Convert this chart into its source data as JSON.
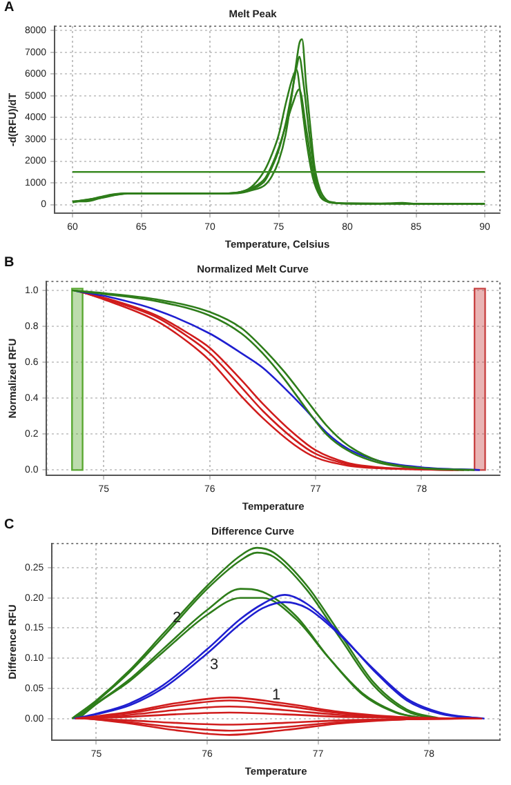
{
  "chart_data": [
    {
      "type": "line",
      "title": "Melt Peak",
      "xlabel": "Temperature, Celsius",
      "ylabel": "-d(RFU)/dT",
      "annotations": [
        "A"
      ],
      "xlim": [
        58.7,
        91.1
      ],
      "ylim": [
        -400,
        8200
      ],
      "xticks": [
        60,
        65,
        70,
        75,
        80,
        85,
        90
      ],
      "yticks": [
        0,
        1000,
        2000,
        3000,
        4000,
        5000,
        6000,
        7000,
        8000
      ],
      "grid": true,
      "legend": false,
      "ref_lines": [
        {
          "axis": "y",
          "value": 1500,
          "color": "#3a8a22"
        }
      ],
      "series": [
        {
          "color": "#2e7d1a",
          "x": [
            60,
            60.5,
            61,
            61.5,
            62,
            63,
            64,
            66,
            68,
            70,
            72,
            73,
            74,
            74.5,
            75,
            75.5,
            76,
            76.3,
            76.6,
            77,
            77.5,
            78,
            78.5,
            79,
            80,
            82,
            83,
            84,
            85,
            88,
            90
          ],
          "values": [
            100,
            150,
            150,
            200,
            300,
            450,
            520,
            520,
            510,
            500,
            550,
            800,
            1600,
            2300,
            3200,
            4600,
            5800,
            6200,
            5000,
            3000,
            1200,
            400,
            150,
            80,
            50,
            40,
            60,
            80,
            40,
            30,
            30
          ]
        },
        {
          "color": "#2e7d1a",
          "x": [
            60,
            61,
            62,
            63,
            64,
            66,
            70,
            72,
            73,
            74,
            74.5,
            75,
            75.5,
            76,
            76.3,
            76.5,
            76.7,
            77,
            77.3,
            77.6,
            78,
            78.5,
            79,
            80,
            85,
            90
          ],
          "values": [
            150,
            200,
            350,
            480,
            520,
            520,
            500,
            520,
            650,
            900,
            1300,
            2000,
            3200,
            5200,
            6600,
            7400,
            7600,
            5500,
            3600,
            1800,
            700,
            200,
            100,
            50,
            40,
            30
          ]
        },
        {
          "color": "#2e7d1a",
          "x": [
            60,
            62,
            64,
            70,
            72,
            73,
            74,
            74.5,
            75,
            75.5,
            76,
            76.5,
            77,
            77.5,
            78,
            78.5,
            79,
            80,
            90
          ],
          "values": [
            120,
            300,
            500,
            500,
            560,
            750,
            1200,
            1800,
            2600,
            3600,
            4600,
            5300,
            3500,
            1500,
            400,
            150,
            80,
            50,
            30
          ]
        },
        {
          "color": "#2e7d1a",
          "x": [
            60,
            62,
            64,
            70,
            72,
            73,
            74,
            74.5,
            75,
            75.5,
            76,
            76.3,
            76.5,
            76.8,
            77.2,
            77.6,
            78,
            78.5,
            79,
            80,
            90
          ],
          "values": [
            130,
            320,
            510,
            500,
            540,
            700,
            1100,
            1700,
            2500,
            3700,
            5300,
            6300,
            6800,
            5600,
            3400,
            1500,
            500,
            150,
            80,
            50,
            30
          ]
        }
      ]
    },
    {
      "type": "line",
      "title": "Normalized Melt Curve",
      "xlabel": "Temperature",
      "ylabel": "Normalized RFU",
      "annotations": [
        "B"
      ],
      "xlim": [
        74.46,
        78.74
      ],
      "ylim": [
        -0.03,
        1.05
      ],
      "xticks": [
        75,
        76,
        77,
        78
      ],
      "yticks": [
        {
          "value": 0,
          "label": "0.0"
        },
        {
          "value": 0.2,
          "label": "0.2"
        },
        {
          "value": 0.4,
          "label": "0.4"
        },
        {
          "value": 0.6,
          "label": "0.6"
        },
        {
          "value": 0.8,
          "label": "0.8"
        },
        {
          "value": 1,
          "label": "1.0"
        }
      ],
      "grid": true,
      "legend": false,
      "bands": [
        {
          "axis": "x",
          "from": 74.7,
          "to": 74.8,
          "color": "#5aa832"
        },
        {
          "axis": "x",
          "from": 78.5,
          "to": 78.6,
          "color": "#c84444"
        }
      ],
      "series": [
        {
          "color": "#2e7d1a",
          "x": [
            74.7,
            75,
            75.5,
            76,
            76.3,
            76.5,
            76.7,
            76.9,
            77.1,
            77.3,
            77.6,
            78,
            78.5
          ],
          "values": [
            1,
            0.985,
            0.95,
            0.88,
            0.79,
            0.68,
            0.55,
            0.4,
            0.25,
            0.14,
            0.05,
            0.01,
            0
          ]
        },
        {
          "color": "#2e7d1a",
          "x": [
            74.72,
            75,
            75.5,
            76,
            76.3,
            76.5,
            76.7,
            76.9,
            77.1,
            77.3,
            77.6,
            78,
            78.45
          ],
          "values": [
            0.998,
            0.98,
            0.94,
            0.86,
            0.76,
            0.65,
            0.51,
            0.35,
            0.2,
            0.11,
            0.04,
            0.01,
            0
          ]
        },
        {
          "color": "#1f1fd0",
          "x": [
            74.74,
            75,
            75.5,
            76,
            76.3,
            76.5,
            76.7,
            76.9,
            77.1,
            77.3,
            77.6,
            78,
            78.55
          ],
          "values": [
            0.996,
            0.97,
            0.89,
            0.76,
            0.65,
            0.57,
            0.46,
            0.34,
            0.21,
            0.12,
            0.05,
            0.015,
            0
          ]
        },
        {
          "color": "#d01c1c",
          "x": [
            74.76,
            75,
            75.5,
            75.8,
            76,
            76.3,
            76.5,
            76.8,
            77,
            77.3,
            77.6,
            78,
            78.4
          ],
          "values": [
            0.994,
            0.96,
            0.86,
            0.76,
            0.68,
            0.5,
            0.37,
            0.2,
            0.11,
            0.04,
            0.015,
            0.005,
            0
          ]
        },
        {
          "color": "#d01c1c",
          "x": [
            74.78,
            75,
            75.5,
            75.8,
            76,
            76.3,
            76.5,
            76.8,
            77,
            77.3,
            77.6,
            78,
            78.35
          ],
          "values": [
            0.992,
            0.955,
            0.85,
            0.74,
            0.65,
            0.46,
            0.33,
            0.17,
            0.09,
            0.033,
            0.012,
            0.004,
            0
          ]
        },
        {
          "color": "#d01c1c",
          "x": [
            74.8,
            75,
            75.5,
            75.8,
            76,
            76.3,
            76.5,
            76.8,
            77,
            77.3,
            77.6,
            78,
            78.3
          ],
          "values": [
            0.99,
            0.95,
            0.83,
            0.71,
            0.61,
            0.41,
            0.29,
            0.14,
            0.07,
            0.025,
            0.01,
            0.003,
            0
          ]
        }
      ]
    },
    {
      "type": "line",
      "title": "Difference Curve",
      "xlabel": "Temperature",
      "ylabel": "Difference RFU",
      "annotations": [
        "C",
        "2",
        "3",
        "1"
      ],
      "xlim": [
        74.6,
        78.64
      ],
      "ylim": [
        -0.036,
        0.29
      ],
      "xticks": [
        75,
        76,
        77,
        78
      ],
      "yticks": [
        {
          "value": 0,
          "label": "0.00"
        },
        {
          "value": 0.05,
          "label": "0.05"
        },
        {
          "value": 0.1,
          "label": "0.10"
        },
        {
          "value": 0.15,
          "label": "0.15"
        },
        {
          "value": 0.2,
          "label": "0.20"
        },
        {
          "value": 0.25,
          "label": "0.25"
        }
      ],
      "grid": true,
      "legend": false,
      "series": [
        {
          "color": "#d01c1c",
          "x": [
            74.81,
            75.3,
            75.7,
            76.2,
            76.7,
            77.2,
            77.8,
            78.48
          ],
          "values": [
            0,
            0.011,
            0.025,
            0.035,
            0.025,
            0.011,
            0.002,
            0
          ]
        },
        {
          "color": "#d01c1c",
          "x": [
            74.83,
            75.3,
            75.7,
            76.2,
            76.7,
            77.2,
            77.8,
            78.44
          ],
          "values": [
            0,
            0.009,
            0.021,
            0.03,
            0.021,
            0.009,
            0.002,
            0
          ]
        },
        {
          "color": "#d01c1c",
          "x": [
            74.85,
            75.3,
            75.7,
            76.2,
            76.7,
            77.2,
            77.8,
            78.4
          ],
          "values": [
            0,
            0.006,
            0.014,
            0.02,
            0.014,
            0.006,
            0.001,
            0
          ]
        },
        {
          "color": "#d01c1c",
          "x": [
            74.87,
            75.3,
            75.7,
            76.2,
            76.7,
            77.2,
            77.8,
            78.36
          ],
          "values": [
            0,
            0.003,
            0.007,
            0.01,
            0.007,
            0.003,
            0.001,
            0
          ]
        },
        {
          "color": "#d01c1c",
          "x": [
            74.89,
            75.3,
            75.7,
            76.2,
            76.7,
            77.2,
            77.8,
            78.32
          ],
          "values": [
            0,
            -0.003,
            -0.007,
            -0.01,
            -0.007,
            -0.003,
            -0.001,
            0
          ]
        },
        {
          "color": "#d01c1c",
          "x": [
            74.91,
            75.3,
            75.7,
            76.2,
            76.7,
            77.2,
            77.8,
            78.28
          ],
          "values": [
            0,
            -0.006,
            -0.014,
            -0.02,
            -0.014,
            -0.006,
            -0.001,
            0
          ]
        },
        {
          "color": "#d01c1c",
          "x": [
            74.93,
            75.3,
            75.7,
            76.2,
            76.7,
            77.2,
            77.8,
            78.24
          ],
          "values": [
            0,
            -0.008,
            -0.019,
            -0.027,
            -0.019,
            -0.008,
            -0.001,
            0
          ]
        },
        {
          "color": "#1f1fd0",
          "x": [
            74.8,
            75,
            75.3,
            75.6,
            76,
            76.3,
            76.5,
            76.7,
            76.9,
            77.2,
            77.5,
            77.8,
            78.1,
            78.5
          ],
          "values": [
            0,
            0.008,
            0.025,
            0.055,
            0.115,
            0.165,
            0.19,
            0.205,
            0.19,
            0.14,
            0.08,
            0.03,
            0.008,
            0
          ]
        },
        {
          "color": "#1f1fd0",
          "x": [
            74.86,
            75,
            75.3,
            75.6,
            76,
            76.3,
            76.5,
            76.7,
            76.9,
            77.2,
            77.5,
            77.8,
            78.1,
            78.46
          ],
          "values": [
            0,
            0.007,
            0.022,
            0.05,
            0.108,
            0.157,
            0.183,
            0.193,
            0.183,
            0.138,
            0.082,
            0.033,
            0.01,
            0
          ]
        },
        {
          "color": "#2e7d1a",
          "x": [
            74.78,
            75,
            75.3,
            75.6,
            76,
            76.3,
            76.45,
            76.6,
            76.9,
            77.2,
            77.5,
            77.8,
            78.1
          ],
          "values": [
            0,
            0.03,
            0.08,
            0.14,
            0.22,
            0.27,
            0.283,
            0.275,
            0.22,
            0.14,
            0.06,
            0.015,
            0
          ]
        },
        {
          "color": "#2e7d1a",
          "x": [
            74.82,
            75,
            75.3,
            75.6,
            76,
            76.3,
            76.45,
            76.6,
            76.9,
            77.2,
            77.5,
            77.8,
            78.05
          ],
          "values": [
            0,
            0.028,
            0.077,
            0.135,
            0.215,
            0.262,
            0.275,
            0.268,
            0.213,
            0.133,
            0.055,
            0.012,
            0
          ]
        },
        {
          "color": "#2e7d1a",
          "x": [
            74.79,
            75,
            75.3,
            75.6,
            76,
            76.3,
            76.5,
            76.8,
            77.1,
            77.4,
            77.7,
            78
          ],
          "values": [
            0,
            0.025,
            0.065,
            0.115,
            0.18,
            0.215,
            0.21,
            0.17,
            0.1,
            0.04,
            0.01,
            0
          ]
        },
        {
          "color": "#2e7d1a",
          "x": [
            74.84,
            75,
            75.3,
            75.6,
            76,
            76.3,
            76.5,
            76.8,
            77.1,
            77.4,
            77.7,
            77.95
          ],
          "values": [
            0,
            0.024,
            0.062,
            0.11,
            0.172,
            0.2,
            0.2,
            0.165,
            0.1,
            0.042,
            0.011,
            0
          ]
        }
      ]
    }
  ]
}
